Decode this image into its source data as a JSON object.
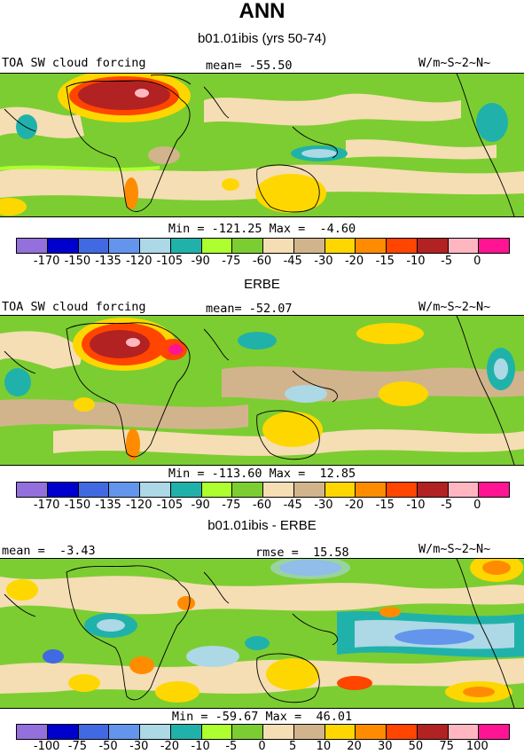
{
  "title": "ANN",
  "palette": [
    "#9370DB",
    "#0000CD",
    "#4169E1",
    "#6495ED",
    "#ADD8E6",
    "#20B2AA",
    "#ADFF2F",
    "#7CCD32",
    "#F5DEB3",
    "#D2B48C",
    "#FFD700",
    "#FF8C00",
    "#FF4500",
    "#B22222",
    "#FFB6C1",
    "#FF1493"
  ],
  "panels": [
    {
      "subtitle": "b01.01ibis (yrs 50-74)",
      "left_label": "TOA SW cloud forcing",
      "stat_label": "mean= -55.50",
      "units": "W/m~S~2~N~",
      "min_max": "Min = -121.25 Max =  -4.60",
      "colorbar_levels": [
        "-170",
        "-150",
        "-135",
        "-120",
        "-105",
        "-90",
        "-75",
        "-60",
        "-45",
        "-30",
        "-20",
        "-15",
        "-10",
        "-5",
        "0"
      ]
    },
    {
      "subtitle": "ERBE",
      "left_label": "TOA SW cloud forcing",
      "stat_label": "mean= -52.07",
      "units": "W/m~S~2~N~",
      "min_max": "Min = -113.60 Max =  12.85",
      "colorbar_levels": [
        "-170",
        "-150",
        "-135",
        "-120",
        "-105",
        "-90",
        "-75",
        "-60",
        "-45",
        "-30",
        "-20",
        "-15",
        "-10",
        "-5",
        "0"
      ]
    },
    {
      "subtitle": "b01.01ibis - ERBE",
      "left_label": "mean =  -3.43",
      "stat_label": "rmse =  15.58",
      "units": "W/m~S~2~N~",
      "min_max": "Min = -59.67 Max =  46.01",
      "colorbar_levels": [
        "-100",
        "-75",
        "-50",
        "-30",
        "-20",
        "-10",
        "-5",
        "0",
        "5",
        "10",
        "20",
        "30",
        "50",
        "75",
        "100"
      ]
    }
  ]
}
